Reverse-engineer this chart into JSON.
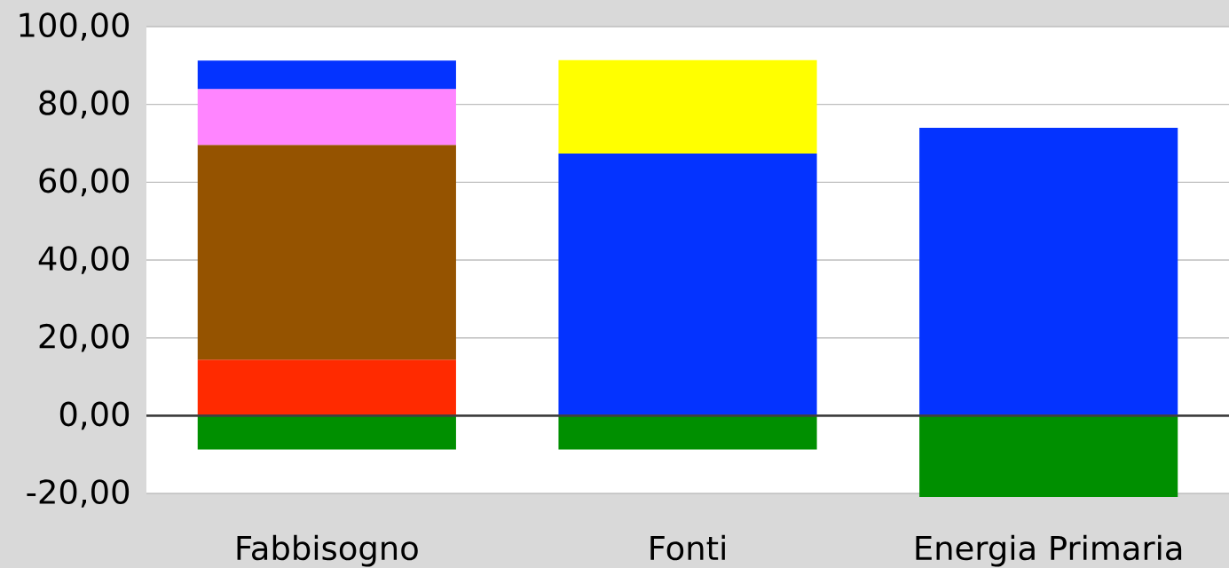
{
  "chart_data": {
    "type": "bar",
    "stacked": true,
    "categories": [
      "Fabbisogno",
      "Fonti",
      "Energia Primaria"
    ],
    "series": [
      {
        "values": [
          -8.7,
          -8.7,
          -20.9
        ],
        "color": "#008f00"
      },
      {
        "values": [
          14.4,
          67.4,
          74.0
        ],
        "colors": [
          "#ff2a00",
          "#0433ff",
          "#0433ff"
        ]
      },
      {
        "values": [
          55.2,
          24.0,
          null
        ],
        "colors": [
          "#955300",
          "#ffff00",
          null
        ]
      },
      {
        "values": [
          14.4,
          null,
          null
        ],
        "color": "#ff85ff"
      },
      {
        "values": [
          7.3,
          null,
          null
        ],
        "color": "#0433ff"
      }
    ],
    "ylim": [
      -21,
      100
    ],
    "yticks": [
      {
        "value": -20,
        "label": "-20,00"
      },
      {
        "value": 0,
        "label": "0,00"
      },
      {
        "value": 20,
        "label": "20,00"
      },
      {
        "value": 40,
        "label": "40,00"
      },
      {
        "value": 60,
        "label": "60,00"
      },
      {
        "value": 80,
        "label": "80,00"
      },
      {
        "value": 100,
        "label": "100,00"
      }
    ],
    "grid": "y",
    "ref_lines": [
      {
        "axis": "y",
        "value": 0,
        "color": "#404040"
      }
    ]
  }
}
